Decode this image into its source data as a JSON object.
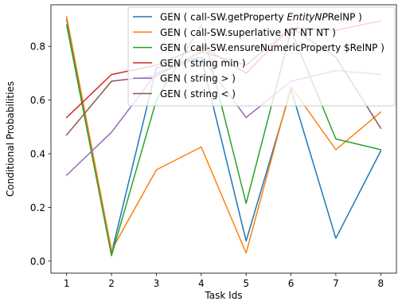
{
  "chart_data": {
    "type": "line",
    "xlabel": "Task Ids",
    "ylabel": "Conditional Probabilities",
    "x": [
      1,
      2,
      3,
      4,
      5,
      6,
      7,
      8
    ],
    "xticks": [
      "1",
      "2",
      "3",
      "4",
      "5",
      "6",
      "7",
      "8"
    ],
    "yticks": [
      "0.0",
      "0.2",
      "0.4",
      "0.6",
      "0.8"
    ],
    "xlim": [
      0.65,
      8.35
    ],
    "ylim": [
      -0.045,
      0.955
    ],
    "grid": false,
    "legend_position": "top-right",
    "series": [
      {
        "name": "GEN ( call-SW.getProperty EntityNPRelNP )",
        "legend_parts": [
          {
            "text": "GEN ( call-SW.getProperty ",
            "italic": false
          },
          {
            "text": "EntityNP",
            "italic": true
          },
          {
            "text": "RelNP )",
            "italic": false
          }
        ],
        "color": "#1f77b4",
        "values": [
          0.9,
          0.03,
          0.72,
          0.76,
          0.075,
          0.64,
          0.085,
          0.41
        ]
      },
      {
        "name": "GEN ( call-SW.superlative NT NT NT )",
        "color": "#ff7f0e",
        "values": [
          0.91,
          0.04,
          0.34,
          0.425,
          0.03,
          0.65,
          0.415,
          0.555
        ]
      },
      {
        "name": "GEN ( call-SW.ensureNumericProperty $RelNP )",
        "color": "#2ca02c",
        "values": [
          0.88,
          0.02,
          0.6,
          0.88,
          0.215,
          0.86,
          0.455,
          0.415
        ]
      },
      {
        "name": "GEN ( string min )",
        "color": "#d62728",
        "values": [
          0.535,
          0.695,
          0.73,
          0.8,
          0.7,
          0.87,
          0.86,
          0.895
        ]
      },
      {
        "name": "GEN ( string > )",
        "color": "#9467bd",
        "values": [
          0.32,
          0.48,
          0.7,
          0.76,
          0.535,
          0.67,
          0.71,
          0.695
        ]
      },
      {
        "name": "GEN ( string < )",
        "color": "#8c564b",
        "values": [
          0.47,
          0.67,
          0.69,
          0.78,
          0.73,
          0.87,
          0.76,
          0.495
        ]
      }
    ]
  }
}
